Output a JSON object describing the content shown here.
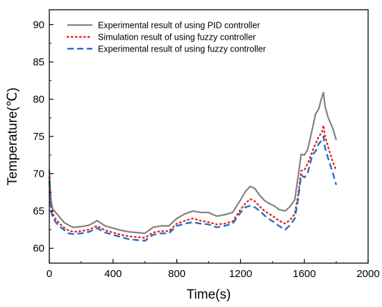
{
  "chart_data": {
    "type": "line",
    "title": "",
    "xlabel": "Time(s)",
    "ylabel": "Temperature(℃)",
    "xlim": [
      0,
      2000
    ],
    "ylim": [
      58,
      92
    ],
    "x_ticks": [
      0,
      400,
      800,
      1200,
      1600,
      2000
    ],
    "x_tick_labels": [
      "0",
      "400",
      "800",
      "1200",
      "1600",
      "2000"
    ],
    "y_ticks": [
      60,
      65,
      70,
      75,
      80,
      85,
      90
    ],
    "y_tick_labels": [
      "60",
      "65",
      "70",
      "75",
      "80",
      "85",
      "90"
    ],
    "grid": false,
    "legend_position": "top-left",
    "series": [
      {
        "name": "Experimental result of  using PID controller",
        "color": "#808080",
        "style": "solid",
        "x": [
          0,
          10,
          20,
          40,
          60,
          90,
          120,
          150,
          200,
          250,
          300,
          350,
          400,
          450,
          500,
          550,
          600,
          650,
          700,
          750,
          800,
          850,
          900,
          950,
          1000,
          1050,
          1100,
          1150,
          1200,
          1230,
          1260,
          1290,
          1320,
          1350,
          1380,
          1410,
          1440,
          1480,
          1510,
          1540,
          1560,
          1580,
          1600,
          1620,
          1650,
          1670,
          1690,
          1710,
          1720,
          1730,
          1750,
          1780,
          1800
        ],
        "y": [
          70.5,
          66.5,
          65.3,
          64.8,
          64.3,
          63.5,
          63.1,
          62.8,
          62.9,
          63.1,
          63.7,
          63.0,
          62.7,
          62.4,
          62.2,
          62.1,
          62.0,
          62.8,
          63.0,
          63.0,
          64.0,
          64.6,
          65.0,
          64.8,
          64.8,
          64.3,
          64.5,
          64.8,
          66.5,
          67.6,
          68.3,
          68.0,
          67.1,
          66.4,
          66.0,
          65.7,
          65.2,
          65.0,
          65.6,
          66.5,
          69.5,
          72.6,
          72.5,
          73.2,
          76.0,
          78.0,
          78.7,
          80.3,
          80.9,
          79.0,
          77.5,
          76.0,
          74.5
        ]
      },
      {
        "name": "Simulation result of using fuzzy controller",
        "color": "#e8221c",
        "style": "dotted",
        "x": [
          0,
          10,
          20,
          40,
          60,
          90,
          120,
          150,
          200,
          250,
          300,
          350,
          400,
          450,
          500,
          550,
          600,
          650,
          700,
          750,
          800,
          850,
          900,
          950,
          1000,
          1050,
          1100,
          1150,
          1200,
          1230,
          1260,
          1290,
          1320,
          1350,
          1380,
          1410,
          1440,
          1480,
          1510,
          1540,
          1560,
          1580,
          1600,
          1620,
          1650,
          1670,
          1690,
          1710,
          1720,
          1730,
          1750,
          1780,
          1800
        ],
        "y": [
          69.5,
          65.8,
          64.7,
          63.9,
          63.4,
          62.8,
          62.4,
          62.2,
          62.3,
          62.5,
          63.0,
          62.4,
          62.1,
          61.8,
          61.6,
          61.5,
          61.4,
          62.1,
          62.3,
          62.3,
          63.3,
          63.7,
          64.0,
          63.7,
          63.5,
          63.2,
          63.3,
          63.6,
          65.2,
          66.0,
          66.6,
          66.3,
          65.6,
          65.0,
          64.6,
          64.2,
          63.7,
          63.3,
          63.8,
          64.6,
          67.0,
          70.4,
          70.5,
          71.3,
          73.0,
          74.0,
          75.0,
          75.5,
          76.5,
          75.0,
          73.5,
          71.5,
          70.5
        ]
      },
      {
        "name": "Experimental result of using fuzzy controller",
        "color": "#1e6fc8",
        "style": "dashed",
        "x": [
          0,
          10,
          20,
          40,
          60,
          90,
          120,
          150,
          200,
          250,
          300,
          350,
          400,
          450,
          500,
          550,
          600,
          650,
          700,
          750,
          800,
          850,
          900,
          950,
          1000,
          1050,
          1100,
          1150,
          1200,
          1230,
          1260,
          1290,
          1320,
          1350,
          1380,
          1410,
          1440,
          1480,
          1510,
          1540,
          1560,
          1580,
          1600,
          1620,
          1650,
          1670,
          1690,
          1710,
          1720,
          1730,
          1750,
          1780,
          1800
        ],
        "y": [
          69.0,
          65.2,
          64.2,
          63.5,
          63.0,
          62.5,
          62.0,
          61.9,
          62.0,
          62.2,
          62.7,
          62.1,
          61.8,
          61.5,
          61.2,
          61.1,
          61.0,
          61.8,
          62.0,
          62.0,
          63.0,
          63.3,
          63.5,
          63.3,
          63.2,
          62.8,
          63.0,
          63.3,
          64.8,
          65.5,
          65.7,
          65.5,
          65.0,
          64.4,
          63.9,
          63.5,
          63.0,
          62.5,
          63.1,
          64.0,
          66.5,
          69.8,
          69.5,
          70.0,
          72.5,
          73.0,
          74.0,
          74.5,
          75.0,
          73.5,
          72.0,
          70.0,
          68.5
        ]
      }
    ]
  }
}
